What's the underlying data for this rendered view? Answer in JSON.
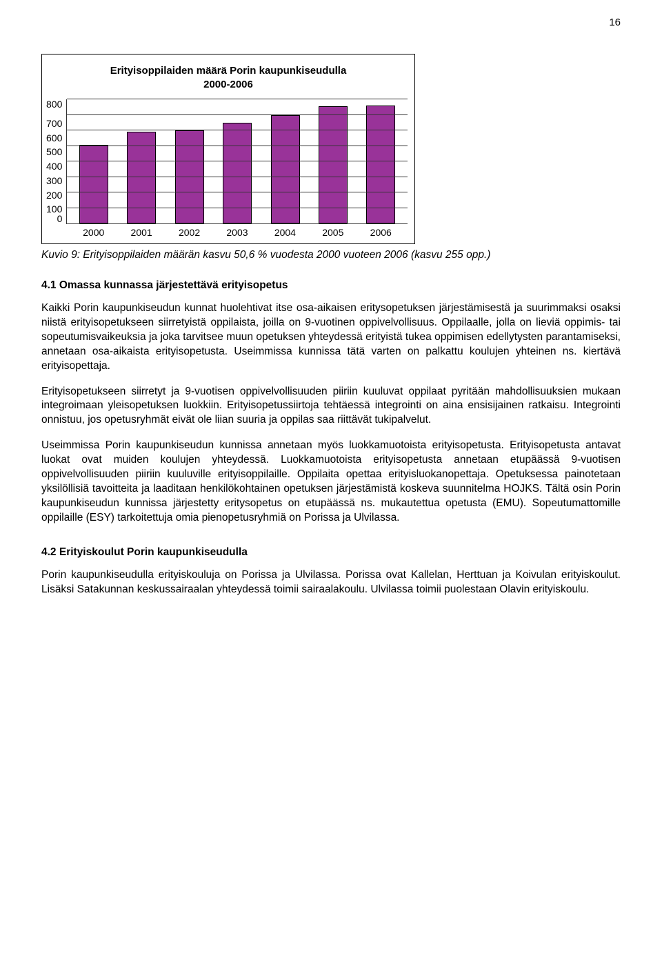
{
  "page_number": "16",
  "chart": {
    "type": "bar",
    "title_line1": "Erityisoppilaiden määrä Porin kaupunkiseudulla",
    "title_line2": "2000-2006",
    "categories": [
      "2000",
      "2001",
      "2002",
      "2003",
      "2004",
      "2005",
      "2006"
    ],
    "values": [
      505,
      590,
      600,
      650,
      700,
      755,
      760
    ],
    "ymax": 800,
    "ystep": 100,
    "yticks": [
      "800",
      "700",
      "600",
      "500",
      "400",
      "300",
      "200",
      "100",
      "0"
    ],
    "bar_color": "#993399",
    "bar_border": "#000000",
    "grid_color": "#333333",
    "background": "#ffffff",
    "title_fontsize": 15,
    "axis_fontsize": 14
  },
  "caption": "Kuvio 9: Erityisoppilaiden määrän kasvu 50,6 % vuodesta 2000 vuoteen 2006 (kasvu 255 opp.)",
  "sections": {
    "s41_heading": "4.1 Omassa kunnassa järjestettävä erityisopetus",
    "s41_p1": "Kaikki Porin kaupunkiseudun kunnat huolehtivat itse osa-aikaisen eritysopetuksen järjestämisestä ja suurimmaksi osaksi niistä erityisopetukseen siirretyistä oppilaista, joilla on 9-vuotinen oppivelvollisuus. Oppilaalle, jolla on lieviä oppimis- tai sopeutumisvaikeuksia ja joka tarvitsee muun opetuksen yhteydessä erityistä tukea oppimisen edellytysten parantamiseksi, annetaan osa-aikaista erityisopetusta. Useimmissa kunnissa tätä varten on palkattu koulujen yhteinen ns. kiertävä erityisopettaja.",
    "s41_p2": "Erityisopetukseen siirretyt ja 9-vuotisen oppivelvollisuuden piiriin kuuluvat oppilaat pyritään mahdollisuuksien mukaan integroimaan yleisopetuksen luokkiin. Erityisopetussiirtoja tehtäessä integrointi on aina ensisijainen ratkaisu. Integrointi onnistuu, jos opetusryhmät eivät ole liian suuria ja oppilas saa riittävät tukipalvelut.",
    "s41_p3": "Useimmissa Porin kaupunkiseudun kunnissa annetaan myös luokkamuotoista erityisopetusta. Erityisopetusta antavat luokat ovat muiden koulujen yhteydessä. Luokkamuotoista erityisopetusta annetaan etupäässä 9-vuotisen oppivelvollisuuden piiriin kuuluville erityisoppilaille. Oppilaita opettaa erityisluokanopettaja. Opetuksessa painotetaan yksilöllisiä tavoitteita ja laaditaan henkilökohtainen opetuksen järjestämistä koskeva suunnitelma HOJKS. Tältä osin Porin kaupunkiseudun kunnissa järjestetty eritysopetus on etupäässä ns. mukautettua opetusta (EMU). Sopeutumattomille oppilaille (ESY) tarkoitettuja omia pienopetusryhmiä on Porissa ja Ulvilassa.",
    "s42_heading": "4.2 Erityiskoulut Porin kaupunkiseudulla",
    "s42_p1": "Porin kaupunkiseudulla erityiskouluja on Porissa ja Ulvilassa. Porissa ovat Kallelan, Herttuan ja Koivulan erityiskoulut. Lisäksi Satakunnan keskussairaalan yhteydessä toimii sairaalakoulu. Ulvilassa toimii puolestaan Olavin erityiskoulu."
  }
}
